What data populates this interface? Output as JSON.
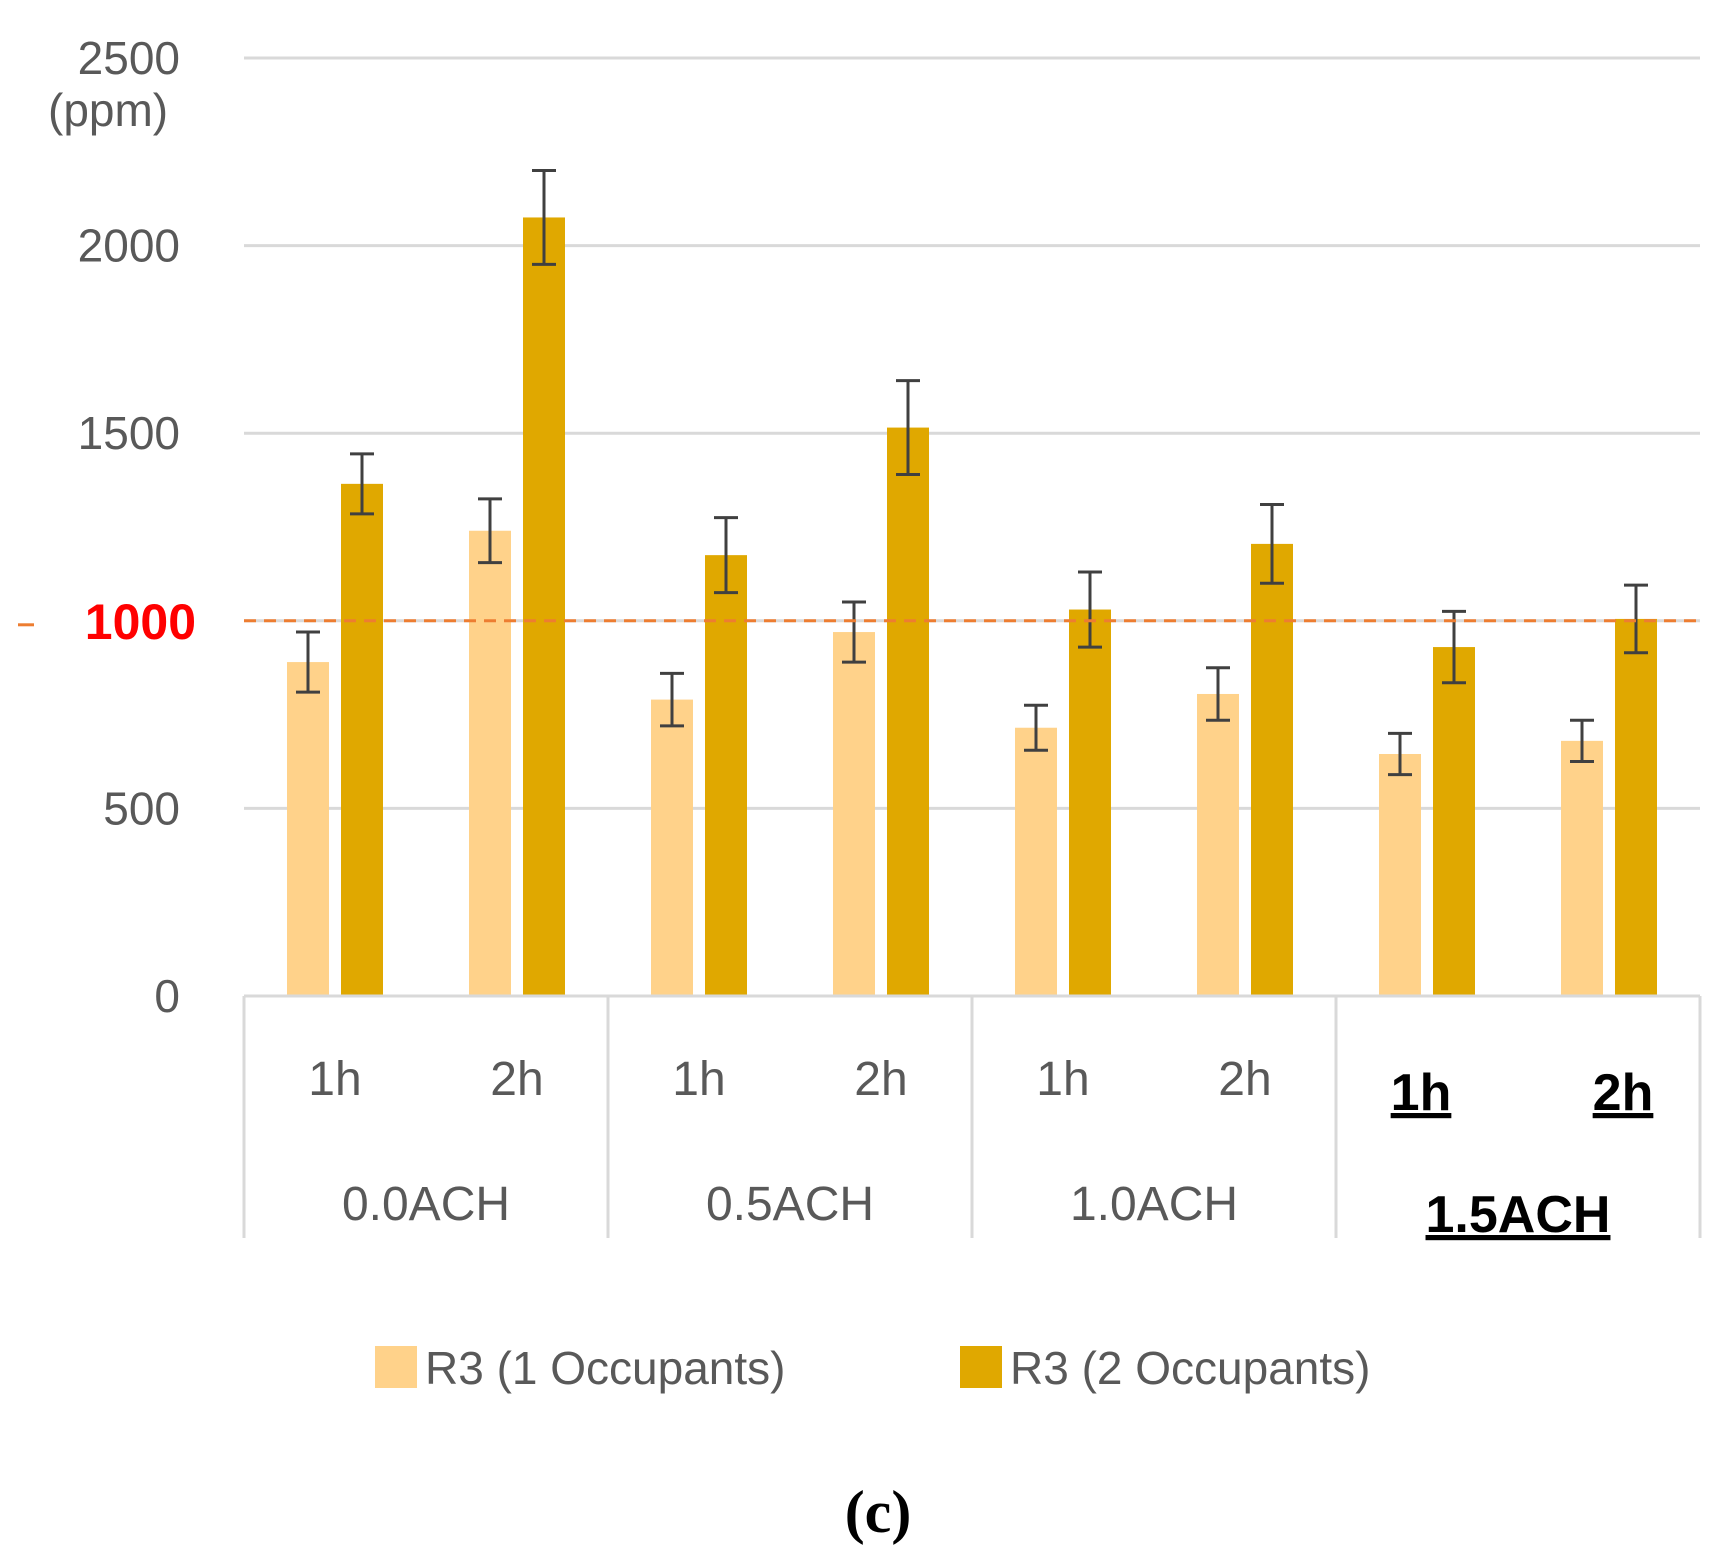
{
  "chart_data": {
    "type": "bar",
    "ylabel": "(ppm)",
    "ylim": [
      0,
      2500
    ],
    "yticks": [
      0,
      500,
      1000,
      1500,
      2000,
      2500
    ],
    "grid": true,
    "groups": [
      {
        "label": "0.0ACH",
        "emphasized": false
      },
      {
        "label": "0.5ACH",
        "emphasized": false
      },
      {
        "label": "1.0ACH",
        "emphasized": false
      },
      {
        "label": "1.5ACH",
        "emphasized": true
      }
    ],
    "categories": [
      "1h",
      "2h",
      "1h",
      "2h",
      "1h",
      "2h",
      "1h",
      "2h"
    ],
    "series": [
      {
        "name": "R3 (1 Occupants)",
        "color": "#FFD28A",
        "values": [
          890,
          1240,
          790,
          970,
          715,
          805,
          645,
          680
        ],
        "errors": [
          80,
          85,
          70,
          80,
          60,
          70,
          55,
          55
        ]
      },
      {
        "name": "R3 (2 Occupants)",
        "color": "#E0A800",
        "values": [
          1365,
          2075,
          1175,
          1515,
          1030,
          1205,
          930,
          1005
        ],
        "errors": [
          80,
          125,
          100,
          125,
          100,
          105,
          95,
          90
        ]
      }
    ],
    "reference_line": {
      "value": 1000,
      "label": "1000",
      "color": "#ED7D31",
      "label_color": "#FF0000"
    },
    "panel_label": "(c)"
  }
}
